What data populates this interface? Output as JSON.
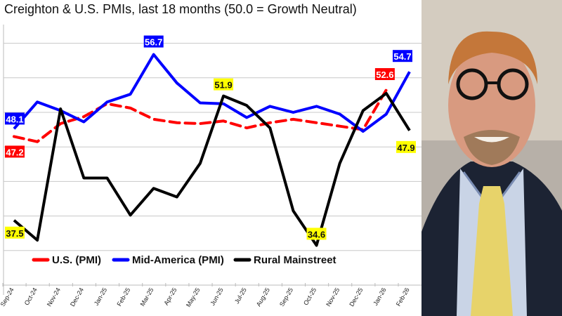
{
  "chart_data": {
    "type": "line",
    "title": "Creighton & U.S. PMIs, last 18 months (50.0 = Growth Neutral)",
    "xlabel": "",
    "ylabel": "",
    "ylim": [
      30,
      60
    ],
    "grid": true,
    "gridlines_y": [
      34,
      38,
      42,
      46,
      50,
      54,
      58
    ],
    "y_tick_labels_shown": false,
    "legend_position": "bottom-inside",
    "categories": [
      "Sep-24",
      "Oct-24",
      "Nov-24",
      "Dec-24",
      "Jan-25",
      "Feb-25",
      "Mar-25",
      "Apr-25",
      "May-25",
      "Jun-25",
      "Jul-25",
      "Aug-25",
      "Sep-25",
      "Oct-25",
      "Nov-25",
      "Dec-25",
      "Jan-26",
      "Feb-26"
    ],
    "series": [
      {
        "name": "U.S. (PMI)",
        "color": "#ff0000",
        "dash": true,
        "values": [
          47.2,
          46.6,
          48.7,
          49.5,
          51.0,
          50.5,
          49.2,
          48.8,
          48.7,
          49.0,
          48.2,
          48.8,
          49.2,
          48.8,
          48.4,
          48.0,
          52.6,
          null
        ],
        "labels": [
          {
            "index": 0,
            "text": "47.2"
          },
          {
            "index": 16,
            "text": "52.6"
          }
        ]
      },
      {
        "name": "Mid-America (PMI)",
        "color": "#0000ff",
        "dash": false,
        "values": [
          48.1,
          51.2,
          50.2,
          48.9,
          51.2,
          52.1,
          56.7,
          53.4,
          51.1,
          51.0,
          49.4,
          50.7,
          50.0,
          50.7,
          49.8,
          47.8,
          49.8,
          54.7
        ],
        "labels": [
          {
            "index": 0,
            "text": "48.1"
          },
          {
            "index": 6,
            "text": "56.7"
          },
          {
            "index": 17,
            "text": "54.7"
          }
        ]
      },
      {
        "name": "Rural Mainstreet",
        "color": "#000000",
        "dash": false,
        "values": [
          37.5,
          35.2,
          50.4,
          42.4,
          42.4,
          38.1,
          41.2,
          40.2,
          44.1,
          51.9,
          50.8,
          48.2,
          38.6,
          34.6,
          44.1,
          50.2,
          52.2,
          47.9
        ],
        "labels": [
          {
            "index": 0,
            "text": "37.5"
          },
          {
            "index": 9,
            "text": "51.9"
          },
          {
            "index": 13,
            "text": "34.6"
          },
          {
            "index": 17,
            "text": "47.9"
          }
        ]
      }
    ]
  },
  "photo": {
    "description_icon": "portrait-photo"
  }
}
